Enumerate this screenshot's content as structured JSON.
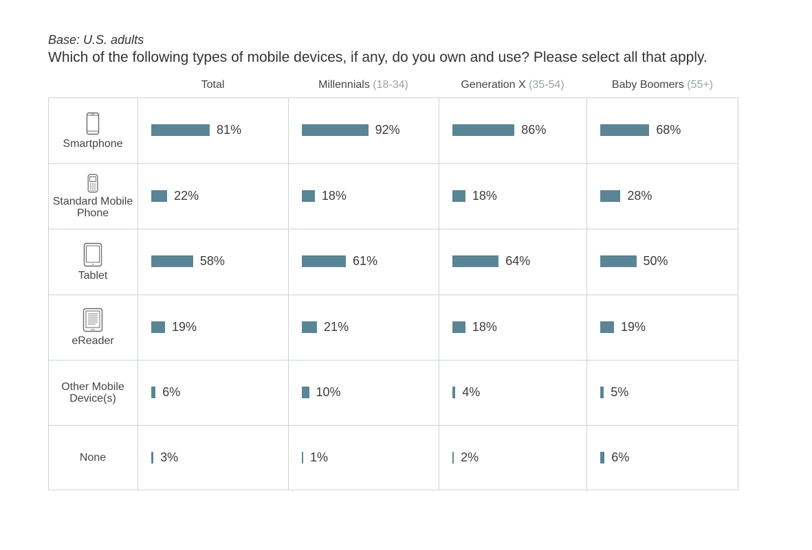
{
  "header": {
    "base": "Base: U.S. adults",
    "question": "Which of the following types of mobile devices, if any, do you own and use? Please select all that apply."
  },
  "chart_data": {
    "type": "bar",
    "columns": [
      {
        "name": "Total",
        "range": ""
      },
      {
        "name": "Millennials",
        "range": "(18-34)"
      },
      {
        "name": "Generation X",
        "range": "(35-54)"
      },
      {
        "name": "Baby Boomers",
        "range": "(55+)"
      }
    ],
    "rows": [
      {
        "label": "Smartphone",
        "icon": "smartphone-icon",
        "values": [
          81,
          92,
          86,
          68
        ],
        "labels": [
          "81%",
          "92%",
          "86%",
          "68%"
        ]
      },
      {
        "label": "Standard Mobile Phone",
        "icon": "feature-phone-icon",
        "values": [
          22,
          18,
          18,
          28
        ],
        "labels": [
          "22%",
          "18%",
          "18%",
          "28%"
        ]
      },
      {
        "label": "Tablet",
        "icon": "tablet-icon",
        "values": [
          58,
          61,
          64,
          50
        ],
        "labels": [
          "58%",
          "61%",
          "64%",
          "50%"
        ]
      },
      {
        "label": "eReader",
        "icon": "ereader-icon",
        "values": [
          19,
          21,
          18,
          19
        ],
        "labels": [
          "19%",
          "21%",
          "18%",
          "19%"
        ]
      },
      {
        "label": "Other Mobile Device(s)",
        "icon": "",
        "values": [
          6,
          10,
          4,
          5
        ],
        "labels": [
          "6%",
          "10%",
          "4%",
          "5%"
        ]
      },
      {
        "label": "None",
        "icon": "",
        "values": [
          3,
          1,
          2,
          6
        ],
        "labels": [
          "3%",
          "1%",
          "2%",
          "6%"
        ]
      }
    ],
    "bar_color": "#5a8595",
    "value_range": [
      0,
      100
    ]
  }
}
